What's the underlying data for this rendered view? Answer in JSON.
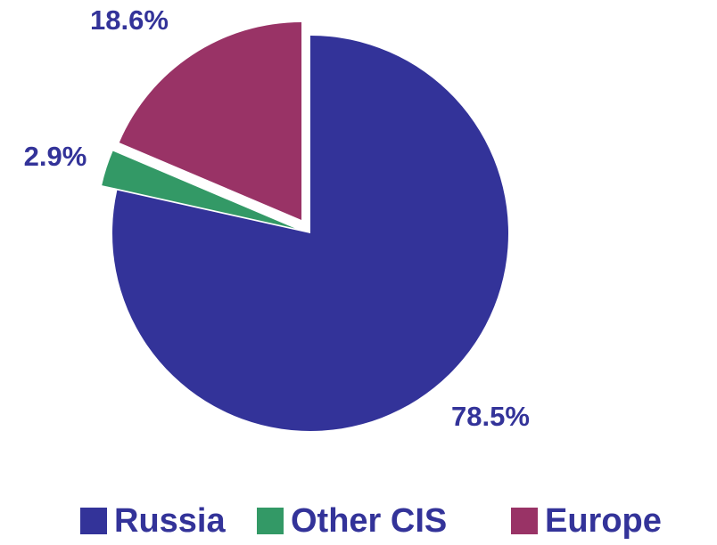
{
  "chart_data": {
    "type": "pie",
    "categories": [
      "Russia",
      "Other CIS",
      "Europe"
    ],
    "values": [
      78.5,
      2.9,
      18.6
    ],
    "value_labels": [
      "78.5%",
      "2.9%",
      "18.6%"
    ],
    "colors": [
      "#333399",
      "#339966",
      "#993366"
    ],
    "legend": "bottom"
  }
}
